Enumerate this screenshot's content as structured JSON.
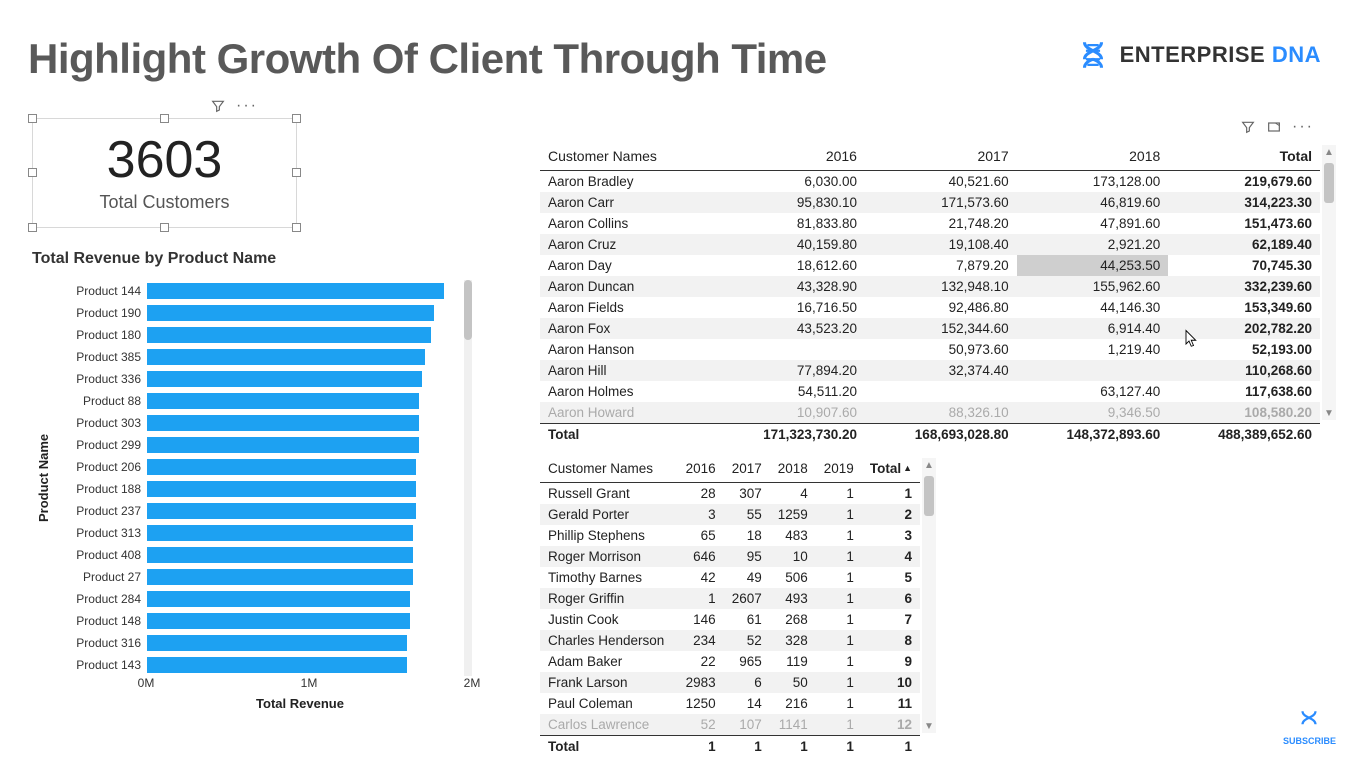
{
  "title": "Highlight Growth Of Client Through Time",
  "logo": {
    "text1": "ENTERPRISE ",
    "text2": "DNA",
    "color": "#2a8cff"
  },
  "subscribe_label": "SUBSCRIBE",
  "card": {
    "value": "3603",
    "label": "Total Customers"
  },
  "bar_chart": {
    "title": "Total Revenue by Product Name",
    "y_axis_title": "Product Name",
    "x_axis_title": "Total Revenue",
    "bar_color": "#1da1f2",
    "x_ticks": [
      {
        "label": "0M",
        "pct": 0
      },
      {
        "label": "1M",
        "pct": 50
      },
      {
        "label": "2M",
        "pct": 100
      }
    ],
    "rows": [
      {
        "label": "Product 144",
        "pct": 96
      },
      {
        "label": "Product 190",
        "pct": 93
      },
      {
        "label": "Product 180",
        "pct": 92
      },
      {
        "label": "Product 385",
        "pct": 90
      },
      {
        "label": "Product 336",
        "pct": 89
      },
      {
        "label": "Product 88",
        "pct": 88
      },
      {
        "label": "Product 303",
        "pct": 88
      },
      {
        "label": "Product 299",
        "pct": 88
      },
      {
        "label": "Product 206",
        "pct": 87
      },
      {
        "label": "Product 188",
        "pct": 87
      },
      {
        "label": "Product 237",
        "pct": 87
      },
      {
        "label": "Product 313",
        "pct": 86
      },
      {
        "label": "Product 408",
        "pct": 86
      },
      {
        "label": "Product 27",
        "pct": 86
      },
      {
        "label": "Product 284",
        "pct": 85
      },
      {
        "label": "Product 148",
        "pct": 85
      },
      {
        "label": "Product 316",
        "pct": 84
      },
      {
        "label": "Product 143",
        "pct": 84
      }
    ]
  },
  "table1": {
    "columns": [
      "Customer Names",
      "2016",
      "2017",
      "2018",
      "Total"
    ],
    "highlight": {
      "row": 4,
      "col": 3
    },
    "rows": [
      [
        "Aaron Bradley",
        "6,030.00",
        "40,521.60",
        "173,128.00",
        "219,679.60"
      ],
      [
        "Aaron Carr",
        "95,830.10",
        "171,573.60",
        "46,819.60",
        "314,223.30"
      ],
      [
        "Aaron Collins",
        "81,833.80",
        "21,748.20",
        "47,891.60",
        "151,473.60"
      ],
      [
        "Aaron Cruz",
        "40,159.80",
        "19,108.40",
        "2,921.20",
        "62,189.40"
      ],
      [
        "Aaron Day",
        "18,612.60",
        "7,879.20",
        "44,253.50",
        "70,745.30"
      ],
      [
        "Aaron Duncan",
        "43,328.90",
        "132,948.10",
        "155,962.60",
        "332,239.60"
      ],
      [
        "Aaron Fields",
        "16,716.50",
        "92,486.80",
        "44,146.30",
        "153,349.60"
      ],
      [
        "Aaron Fox",
        "43,523.20",
        "152,344.60",
        "6,914.40",
        "202,782.20"
      ],
      [
        "Aaron Hanson",
        "",
        "50,973.60",
        "1,219.40",
        "52,193.00"
      ],
      [
        "Aaron Hill",
        "77,894.20",
        "32,374.40",
        "",
        "110,268.60"
      ],
      [
        "Aaron Holmes",
        "54,511.20",
        "",
        "63,127.40",
        "117,638.60"
      ],
      [
        "Aaron Howard",
        "10,907.60",
        "88,326.10",
        "9,346.50",
        "108,580.20"
      ]
    ],
    "footer": [
      "Total",
      "171,323,730.20",
      "168,693,028.80",
      "148,372,893.60",
      "488,389,652.60"
    ]
  },
  "table2": {
    "columns": [
      "Customer Names",
      "2016",
      "2017",
      "2018",
      "2019",
      "Total"
    ],
    "sort_col": 5,
    "rows": [
      [
        "Russell Grant",
        "28",
        "307",
        "4",
        "1",
        "1"
      ],
      [
        "Gerald Porter",
        "3",
        "55",
        "1259",
        "1",
        "2"
      ],
      [
        "Phillip Stephens",
        "65",
        "18",
        "483",
        "1",
        "3"
      ],
      [
        "Roger Morrison",
        "646",
        "95",
        "10",
        "1",
        "4"
      ],
      [
        "Timothy Barnes",
        "42",
        "49",
        "506",
        "1",
        "5"
      ],
      [
        "Roger Griffin",
        "1",
        "2607",
        "493",
        "1",
        "6"
      ],
      [
        "Justin Cook",
        "146",
        "61",
        "268",
        "1",
        "7"
      ],
      [
        "Charles Henderson",
        "234",
        "52",
        "328",
        "1",
        "8"
      ],
      [
        "Adam Baker",
        "22",
        "965",
        "119",
        "1",
        "9"
      ],
      [
        "Frank Larson",
        "2983",
        "6",
        "50",
        "1",
        "10"
      ],
      [
        "Paul Coleman",
        "1250",
        "14",
        "216",
        "1",
        "11"
      ],
      [
        "Carlos Lawrence",
        "52",
        "107",
        "1141",
        "1",
        "12"
      ]
    ],
    "footer": [
      "Total",
      "1",
      "1",
      "1",
      "1",
      "1"
    ]
  }
}
